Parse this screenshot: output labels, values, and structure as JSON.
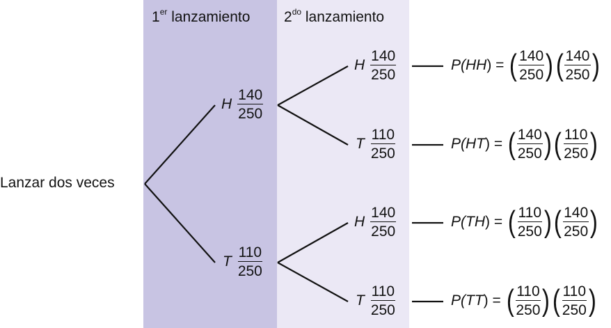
{
  "headers": {
    "first": {
      "num": "1",
      "sup": "er",
      "text": " lanzamiento"
    },
    "second": {
      "num": "2",
      "sup": "do",
      "text": " lanzamiento"
    }
  },
  "root": {
    "label": "Lanzar dos veces"
  },
  "first_toss": [
    {
      "outcome": "H",
      "num": "140",
      "den": "250"
    },
    {
      "outcome": "T",
      "num": "110",
      "den": "250"
    }
  ],
  "second_toss": [
    {
      "outcome": "H",
      "num": "140",
      "den": "250"
    },
    {
      "outcome": "T",
      "num": "110",
      "den": "250"
    },
    {
      "outcome": "H",
      "num": "140",
      "den": "250"
    },
    {
      "outcome": "T",
      "num": "110",
      "den": "250"
    }
  ],
  "results": [
    {
      "label_prefix": "P(",
      "event": "HH",
      "label_suffix": ") =",
      "f1": {
        "num": "140",
        "den": "250"
      },
      "f2": {
        "num": "140",
        "den": "250"
      }
    },
    {
      "label_prefix": "P(",
      "event": "HT",
      "label_suffix": ") =",
      "f1": {
        "num": "140",
        "den": "250"
      },
      "f2": {
        "num": "110",
        "den": "250"
      }
    },
    {
      "label_prefix": "P(",
      "event": "TH",
      "label_suffix": ") =",
      "f1": {
        "num": "110",
        "den": "250"
      },
      "f2": {
        "num": "140",
        "den": "250"
      }
    },
    {
      "label_prefix": "P(",
      "event": "TT",
      "label_suffix": ") =",
      "f1": {
        "num": "110",
        "den": "250"
      },
      "f2": {
        "num": "110",
        "den": "250"
      }
    }
  ],
  "colors": {
    "first_band": "#c8c4e3",
    "second_band": "#ebe8f5",
    "ink": "#111111"
  }
}
